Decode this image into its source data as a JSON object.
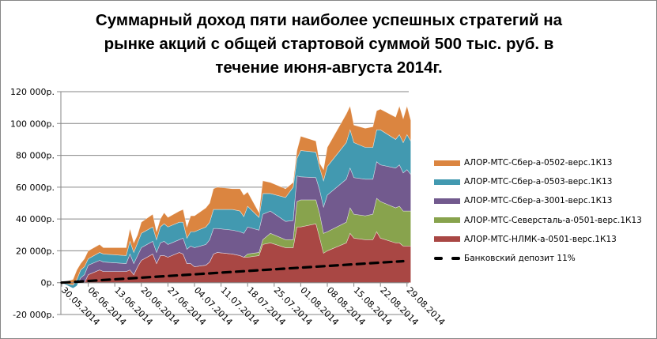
{
  "chart_data": {
    "type": "area",
    "stacked": true,
    "title": [
      "Суммарный доход пяти наиболее успешных стратегий на",
      "рынке акций с общей стартовой суммой 500 тыс. руб. в",
      "течение июня-августа 2014г."
    ],
    "xlabel": "",
    "ylabel": "",
    "ylim": [
      -20000,
      120000
    ],
    "y_ticks": [
      "-20 000р.",
      "0р.",
      "20 000р.",
      "40 000р.",
      "60 000р.",
      "80 000р.",
      "100 000р.",
      "120 000р."
    ],
    "y_tick_values": [
      -20000,
      0,
      20000,
      40000,
      60000,
      80000,
      100000,
      120000
    ],
    "x_ticks": [
      "30.05.2014",
      "06.06.2014",
      "13.06.2014",
      "20.06.2014",
      "27.06.2014",
      "04.07.2014",
      "11.07.2014",
      "18.07.2014",
      "25.07.2014",
      "01.08.2014",
      "08.08.2014",
      "15.08.2014",
      "22.08.2014",
      "29.08.2014"
    ],
    "grid": "horizontal",
    "legend_position": "right",
    "value_scale": 1000,
    "x": [
      "30.05.2014",
      "02.06.2014",
      "03.06.2014",
      "04.06.2014",
      "05.06.2014",
      "06.06.2014",
      "09.06.2014",
      "10.06.2014",
      "16.06.2014",
      "17.06.2014",
      "18.06.2014",
      "19.06.2014",
      "20.06.2014",
      "23.06.2014",
      "24.06.2014",
      "25.06.2014",
      "26.06.2014",
      "27.06.2014",
      "30.06.2014",
      "01.07.2014",
      "02.07.2014",
      "03.07.2014",
      "04.07.2014",
      "07.07.2014",
      "08.07.2014",
      "09.07.2014",
      "10.07.2014",
      "14.07.2014",
      "16.07.2014",
      "17.07.2014",
      "18.07.2014",
      "21.07.2014",
      "22.07.2014",
      "24.07.2014",
      "28.07.2014",
      "30.07.2014",
      "31.07.2014",
      "01.08.2014",
      "05.08.2014",
      "06.08.2014",
      "07.08.2014",
      "08.08.2014",
      "13.08.2014",
      "14.08.2014",
      "15.08.2014",
      "18.08.2014",
      "20.08.2014",
      "21.08.2014",
      "22.08.2014",
      "26.08.2014",
      "27.08.2014",
      "28.08.2014",
      "29.08.2014",
      "30.08.2014"
    ],
    "series": [
      {
        "name": "АЛОР-МТС-НЛМК-а-0501-верс.1К13",
        "color": "#A94744",
        "values": [
          0,
          0,
          0,
          0,
          0,
          5,
          8,
          7,
          7,
          8,
          5,
          10,
          14,
          18,
          12,
          17,
          17,
          16,
          19,
          18,
          12,
          12,
          10,
          11,
          13,
          18,
          19,
          18,
          17,
          16,
          16,
          17,
          24,
          25,
          22,
          22,
          35,
          35,
          37,
          28,
          18.5,
          20,
          25,
          31,
          28,
          27,
          27,
          32,
          28,
          25,
          25,
          23,
          23,
          23
        ]
      },
      {
        "name": "АЛОР-МТС-Северсталь-а-0501-верс.1К13",
        "color": "#88A34D",
        "values": [
          0,
          0,
          0,
          0,
          0,
          0,
          0,
          0,
          0,
          0,
          0,
          0,
          0,
          0,
          0,
          0,
          0,
          0,
          0,
          0,
          0,
          0,
          0,
          0,
          0,
          0,
          0,
          0,
          0,
          0,
          2,
          2,
          3,
          6,
          5,
          5,
          16,
          17,
          15,
          15,
          12.5,
          12,
          13,
          16,
          15,
          15,
          16,
          21,
          23,
          22,
          23,
          22,
          22,
          22
        ]
      },
      {
        "name": "АЛОР-МТС-Сбер-а-3001-верс.1К13",
        "color": "#725A8E",
        "values": [
          0,
          -3.5,
          -2,
          3,
          5,
          6,
          6,
          6,
          5,
          10,
          7,
          7,
          8,
          8,
          7,
          8,
          9,
          8,
          8,
          10,
          9,
          11,
          12,
          13,
          14,
          16,
          15,
          15,
          15,
          15,
          17,
          14,
          16,
          14,
          11.5,
          12,
          16,
          14.5,
          14,
          15,
          16.5,
          23,
          27,
          25,
          23,
          23,
          22,
          23,
          23,
          25,
          26,
          24,
          26,
          23
        ]
      },
      {
        "name": "АЛОР-МТС-Сбер-а-0503-верс.1К13",
        "color": "#4299B0",
        "values": [
          0,
          2,
          4,
          5,
          5,
          4,
          5,
          5,
          5,
          8,
          7,
          8,
          9,
          9,
          8,
          10,
          11,
          11,
          11,
          10,
          7,
          9,
          10,
          11,
          11,
          12,
          12,
          13,
          13,
          10.5,
          13,
          8,
          13,
          11,
          15,
          21,
          11,
          16.5,
          16,
          14,
          16.5,
          18,
          23,
          24,
          22,
          20,
          20,
          20,
          22,
          18,
          19,
          19,
          22,
          21
        ]
      },
      {
        "name": "АЛОР-МТС-Сбер-а-0502-верс.1К13",
        "color": "#DB8540",
        "values": [
          0,
          3.5,
          6,
          4,
          5,
          5,
          5,
          4,
          5,
          8,
          6,
          5,
          7,
          8,
          5,
          5,
          7,
          6,
          7,
          8,
          7,
          10,
          10,
          12,
          12,
          13,
          14,
          13,
          14,
          13.5,
          9,
          3,
          8,
          7,
          5.5,
          3,
          5,
          9,
          7,
          3,
          7,
          12,
          18,
          15,
          11,
          12,
          13,
          12,
          13,
          14,
          18,
          15,
          18,
          13
        ]
      }
    ],
    "line_series": {
      "name": "Банковский депозит 11%",
      "color": "#000000",
      "style": "dashed",
      "x": [
        "30.05.2014",
        "28.08.2014"
      ],
      "values": [
        0,
        13.5
      ]
    }
  }
}
